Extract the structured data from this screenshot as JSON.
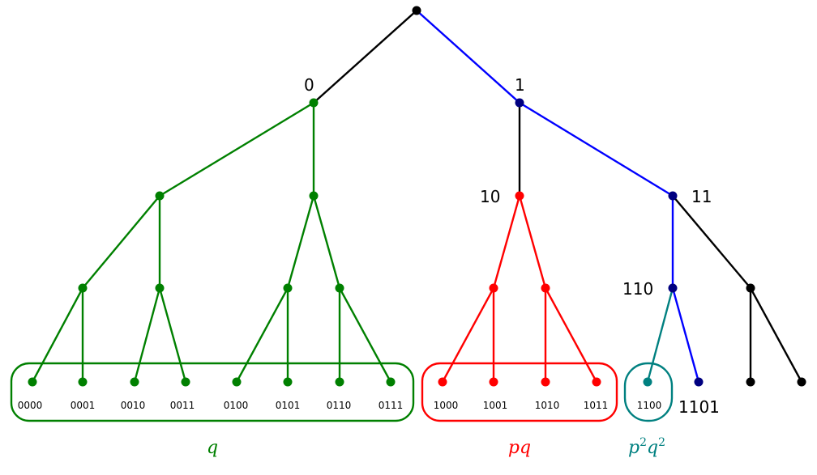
{
  "colors": {
    "black": "#000000",
    "blue": "#0000ff",
    "navy": "#000080",
    "green": "#008000",
    "red": "#ff0000",
    "teal": "#008080"
  },
  "tree": {
    "node_labels": {
      "n0": "0",
      "n1": "1",
      "n10": "10",
      "n11": "11",
      "n110": "110",
      "n1101": "1101"
    },
    "leaf_labels": {
      "l0000": "0000",
      "l0001": "0001",
      "l0010": "0010",
      "l0011": "0011",
      "l0100": "0100",
      "l0101": "0101",
      "l0110": "0110",
      "l0111": "0111",
      "l1000": "1000",
      "l1001": "1001",
      "l1010": "1010",
      "l1011": "1011",
      "l1100": "1100"
    }
  },
  "groups": {
    "q": {
      "label": "q",
      "color": "#008000"
    },
    "pq": {
      "label": "pq",
      "color": "#ff0000"
    },
    "p2q2": {
      "label_base1": "p",
      "label_sup1": "2",
      "label_base2": "q",
      "label_sup2": "2",
      "color": "#008080"
    }
  }
}
